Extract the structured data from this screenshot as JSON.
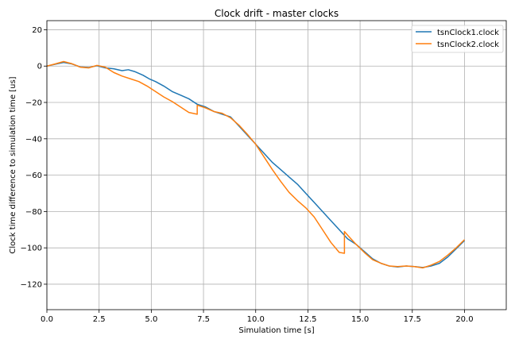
{
  "chart_data": {
    "type": "line",
    "title": "Clock drift - master clocks",
    "xlabel": "Simulation time [s]",
    "ylabel": "Clock time difference to simulation time [us]",
    "xlim": [
      0,
      22
    ],
    "ylim": [
      -134,
      25
    ],
    "xticks": [
      0,
      2.5,
      5,
      7.5,
      10,
      12.5,
      15,
      17.5,
      20
    ],
    "xtick_labels": [
      "0.0",
      "2.5",
      "5.0",
      "7.5",
      "10.0",
      "12.5",
      "15.0",
      "17.5",
      "20.0"
    ],
    "yticks": [
      -120,
      -100,
      -80,
      -60,
      -40,
      -20,
      0,
      20
    ],
    "ytick_labels": [
      "−120",
      "−100",
      "−80",
      "−60",
      "−40",
      "−20",
      "0",
      "20"
    ],
    "grid": true,
    "legend_position": "top-right",
    "series": [
      {
        "name": "tsnClock1.clock",
        "color": "#1f77b4",
        "x": [
          0,
          0.4,
          0.8,
          1.2,
          1.6,
          2.0,
          2.4,
          2.8,
          3.2,
          3.6,
          3.9,
          4.2,
          4.6,
          4.9,
          5.2,
          5.6,
          6.0,
          6.4,
          6.8,
          7.2,
          7.6,
          8.0,
          8.4,
          8.8,
          9.2,
          9.6,
          10.0,
          10.4,
          10.8,
          11.2,
          11.6,
          12.0,
          12.4,
          12.8,
          13.2,
          13.6,
          14.0,
          14.4,
          14.8,
          15.2,
          15.6,
          16.0,
          16.4,
          16.8,
          17.2,
          17.6,
          18.0,
          18.4,
          18.8,
          19.2,
          19.6,
          20.0
        ],
        "y": [
          0,
          1.0,
          2.0,
          1.2,
          -0.5,
          -0.8,
          0.2,
          -1.0,
          -1.5,
          -2.5,
          -2.0,
          -3.0,
          -5.0,
          -7.0,
          -8.5,
          -11.0,
          -14.0,
          -16.0,
          -18.0,
          -21.0,
          -22.5,
          -25.0,
          -26.5,
          -28.0,
          -33.0,
          -38.0,
          -43.0,
          -48.0,
          -53.0,
          -57.0,
          -61.0,
          -65.0,
          -70.0,
          -75.0,
          -80.0,
          -85.0,
          -90.0,
          -95.0,
          -98.0,
          -102.0,
          -106.0,
          -108.5,
          -110.0,
          -110.5,
          -110.0,
          -110.3,
          -110.8,
          -110.0,
          -108.5,
          -105.0,
          -100.5,
          -96.0
        ]
      },
      {
        "name": "tsnClock2.clock",
        "color": "#ff7f0e",
        "x": [
          0,
          0.4,
          0.8,
          1.2,
          1.6,
          2.0,
          2.4,
          2.8,
          3.2,
          3.6,
          4.0,
          4.4,
          4.8,
          5.2,
          5.6,
          6.0,
          6.4,
          6.8,
          7.2,
          7.2,
          7.6,
          8.0,
          8.4,
          8.8,
          9.2,
          9.6,
          10.0,
          10.4,
          10.8,
          11.2,
          11.6,
          12.0,
          12.4,
          12.8,
          13.2,
          13.6,
          14.0,
          14.25,
          14.25,
          14.4,
          14.8,
          15.2,
          15.6,
          16.0,
          16.4,
          16.8,
          17.2,
          17.6,
          18.0,
          18.4,
          18.8,
          19.2,
          19.6,
          20.0
        ],
        "y": [
          0,
          1.2,
          2.5,
          1.3,
          -0.6,
          -1.0,
          0.4,
          -0.6,
          -3.5,
          -5.5,
          -7.0,
          -8.5,
          -11.0,
          -14.0,
          -17.0,
          -19.5,
          -22.5,
          -25.5,
          -26.5,
          -21.5,
          -23.0,
          -25.0,
          -26.0,
          -28.5,
          -32.5,
          -37.5,
          -43.0,
          -50.0,
          -57.0,
          -63.5,
          -69.5,
          -74.0,
          -78.0,
          -83.0,
          -90.0,
          -97.0,
          -102.5,
          -103.0,
          -91.0,
          -93.0,
          -98.0,
          -102.5,
          -106.5,
          -108.5,
          -110.0,
          -110.3,
          -110.0,
          -110.3,
          -111.0,
          -109.5,
          -107.5,
          -104.0,
          -100.0,
          -95.5
        ]
      }
    ]
  }
}
